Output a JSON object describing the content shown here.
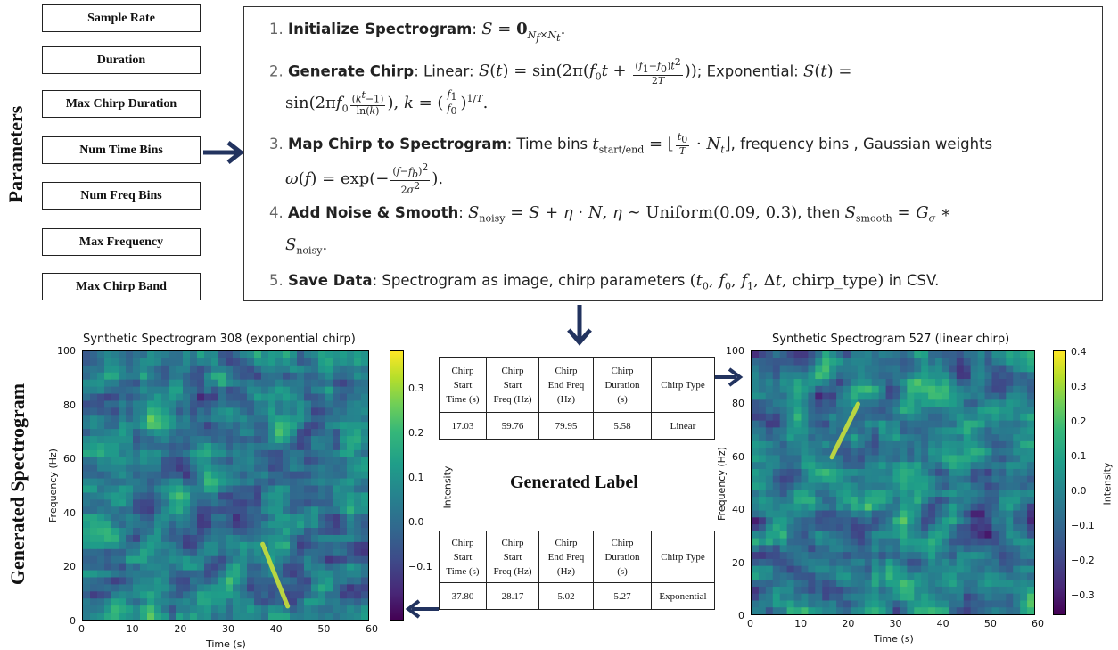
{
  "side_labels": {
    "parameters": "Parameters",
    "generated": "Generated Spectrogram"
  },
  "parameters": [
    "Sample Rate",
    "Duration",
    "Max Chirp Duration",
    "Num Time Bins",
    "Num Freq Bins",
    "Max Frequency",
    "Max Chirp Band"
  ],
  "steps": {
    "s1": {
      "num": "1.",
      "title": "Initialize Spectrogram",
      "rest": ":"
    },
    "s2": {
      "num": "2.",
      "title": "Generate Chirp",
      "text_a": ": Linear:",
      "text_b": "; Exponential:"
    },
    "s3": {
      "num": "3.",
      "title": "Map Chirp to Spectrogram",
      "text_a": ": Time bins",
      "text_b": ", frequency bins , Gaussian weights"
    },
    "s4": {
      "num": "4.",
      "title": "Add Noise & Smooth",
      "text_a": ":",
      "text_b": ", then"
    },
    "s5": {
      "num": "5.",
      "title": "Save Data",
      "text_a": ": Spectrogram as image, chirp parameters",
      "text_b": "in CSV."
    }
  },
  "generated_label": "Generated Label",
  "label_tables": {
    "headers": [
      "Chirp Start Time (s)",
      "Chirp Start Freq (Hz)",
      "Chirp End Freq (Hz)",
      "Chirp Duration (s)",
      "Chirp Type"
    ],
    "header_lines": [
      [
        "Chirp",
        "Start",
        "Time (s)"
      ],
      [
        "Chirp",
        "Start",
        "Freq (Hz)"
      ],
      [
        "Chirp",
        "End Freq",
        "(Hz)"
      ],
      [
        "Chirp",
        "Duration",
        "(s)"
      ],
      [
        "Chirp Type"
      ]
    ],
    "top_row": [
      "17.03",
      "59.76",
      "79.95",
      "5.58",
      "Linear"
    ],
    "bottom_row": [
      "37.80",
      "28.17",
      "5.02",
      "5.27",
      "Exponential"
    ]
  },
  "chart_data": [
    {
      "type": "heatmap",
      "title": "Synthetic Spectrogram 308 (exponential chirp)",
      "xlabel": "Time (s)",
      "ylabel": "Frequency (Hz)",
      "colorbar_label": "Intensity",
      "xlim": [
        0,
        60
      ],
      "ylim": [
        0,
        100
      ],
      "xticks": [
        "0",
        "10",
        "20",
        "30",
        "40",
        "50",
        "60"
      ],
      "yticks": [
        "0",
        "20",
        "40",
        "60",
        "80",
        "100"
      ],
      "colorbar_ticks": [
        "0.3",
        "0.2",
        "0.1",
        "0.0",
        "−0.1"
      ],
      "colormap": "viridis",
      "chirp": {
        "t_start": 37.8,
        "t_end": 43.07,
        "f_start": 28.17,
        "f_end": 5.02
      }
    },
    {
      "type": "heatmap",
      "title": "Synthetic Spectrogram 527 (linear chirp)",
      "xlabel": "Time (s)",
      "ylabel": "Frequency (Hz)",
      "colorbar_label": "Intensity",
      "xlim": [
        0,
        60
      ],
      "ylim": [
        0,
        100
      ],
      "xticks": [
        "0",
        "10",
        "20",
        "30",
        "40",
        "50",
        "60"
      ],
      "yticks": [
        "0",
        "20",
        "40",
        "60",
        "80",
        "100"
      ],
      "colorbar_ticks": [
        "0.4",
        "0.3",
        "0.2",
        "0.1",
        "0.0",
        "−0.1",
        "−0.2",
        "−0.3"
      ],
      "colormap": "viridis",
      "chirp": {
        "t_start": 17.03,
        "t_end": 22.61,
        "f_start": 59.76,
        "f_end": 79.95
      }
    }
  ],
  "colors": {
    "arrow": "#22335f",
    "border": "#222222"
  }
}
